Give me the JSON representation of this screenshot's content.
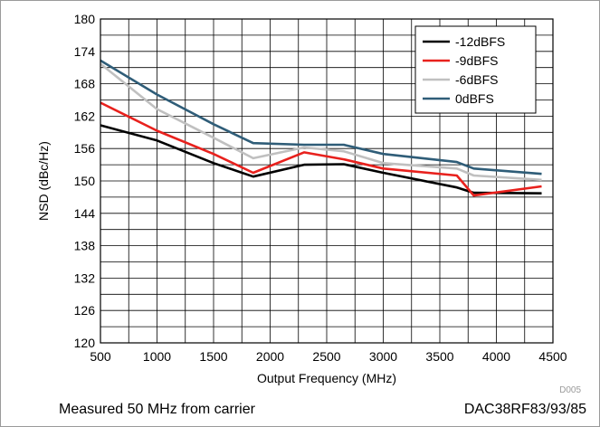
{
  "chart_data": {
    "type": "line",
    "title": "",
    "xlabel": "Output Frequency (MHz)",
    "ylabel": "NSD (dBc/Hz)",
    "xlim": [
      500,
      4500
    ],
    "ylim": [
      120,
      180
    ],
    "xticks": [
      500,
      1000,
      1500,
      2000,
      2500,
      3000,
      3500,
      4000,
      4500
    ],
    "yticks": [
      120,
      126,
      132,
      138,
      144,
      150,
      156,
      162,
      168,
      174,
      180
    ],
    "grid": true,
    "legend_position": "top-right",
    "series": [
      {
        "name": "-12dBFS",
        "color": "#000000",
        "x": [
          500,
          1000,
          1500,
          1850,
          2300,
          2650,
          3000,
          3650,
          3800,
          4400
        ],
        "y": [
          160.3,
          157.5,
          153.3,
          150.8,
          153.0,
          153.1,
          151.5,
          148.8,
          147.8,
          147.7
        ]
      },
      {
        "name": "-9dBFS",
        "color": "#e8211d",
        "x": [
          500,
          1000,
          1500,
          1850,
          2300,
          2650,
          3000,
          3650,
          3800,
          4400
        ],
        "y": [
          164.5,
          159.3,
          155.0,
          151.5,
          155.3,
          154.0,
          152.3,
          151.0,
          147.3,
          149.0
        ]
      },
      {
        "name": "-6dBFS",
        "color": "#c0c0c0",
        "x": [
          500,
          1000,
          1500,
          1850,
          2300,
          2650,
          3000,
          3650,
          3800,
          4400
        ],
        "y": [
          171.7,
          163.3,
          158.0,
          154.2,
          156.2,
          155.5,
          153.3,
          152.3,
          151.0,
          150.2
        ]
      },
      {
        "name": "0dBFS",
        "color": "#2f5d78",
        "x": [
          500,
          1000,
          1500,
          1850,
          2300,
          2650,
          3000,
          3650,
          3800,
          4400
        ],
        "y": [
          172.3,
          166.0,
          160.5,
          157.0,
          156.7,
          156.7,
          155.0,
          153.5,
          152.3,
          151.3
        ]
      }
    ]
  },
  "figure_id": "D005",
  "caption_left": "Measured 50 MHz from carrier",
  "caption_right": "DAC38RF83/93/85"
}
